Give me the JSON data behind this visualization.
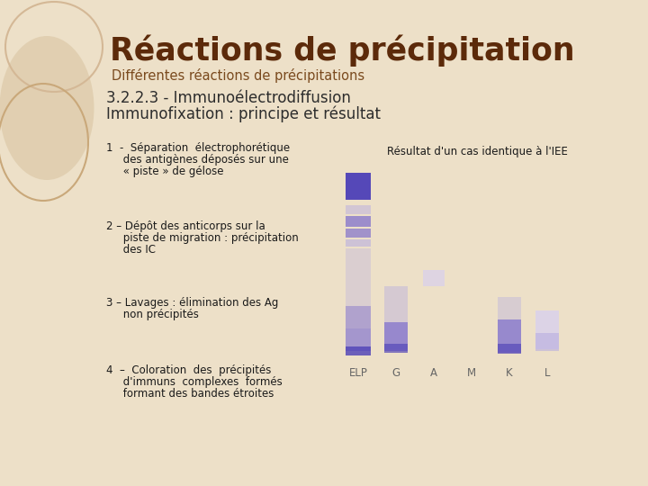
{
  "bg_color": "#ede0c8",
  "title": "Réactions de précipitation",
  "subtitle": "Différentes réactions de précipitations",
  "section_line1": "3.2.2.3 - Immunoélectrodiffusion",
  "section_line2": "Immunofixation : principe et résultat",
  "title_color": "#5c2a0a",
  "subtitle_color": "#7a4a1e",
  "section_color": "#2d2d2d",
  "body_color": "#1a1a1a",
  "result_label": "Résultat d'un cas identique à l'IEE",
  "lane_labels": [
    "ELP",
    "G",
    "A",
    "M",
    "K",
    "L"
  ],
  "item1_line1": "1  -  Séparation  électrophorétique",
  "item1_line2": "     des antigènes déposés sur une",
  "item1_line3": "     « piste » de gélose",
  "item2_line1": "2 – Dépôt des anticorps sur la",
  "item2_line2": "     piste de migration : précipitation",
  "item2_line3": "     des IC",
  "item3_line1": "3 – Lavages : élimination des Ag",
  "item3_line2": "     non précipités",
  "item4_line1": "4  –  Coloration  des  précipités",
  "item4_line2": "     d'immuns  complexes  formés",
  "item4_line3": "     formant des bandes étroites",
  "oval_stroke1": "#d4b896",
  "oval_stroke2": "#c9a87a",
  "oval_fill": "#dcc9a8",
  "band_dark": "#5548b8",
  "band_mid": "#8878cc",
  "band_light": "#b8aee0",
  "band_vlight": "#d8d0ee",
  "band_faint": "#e8e4f5"
}
